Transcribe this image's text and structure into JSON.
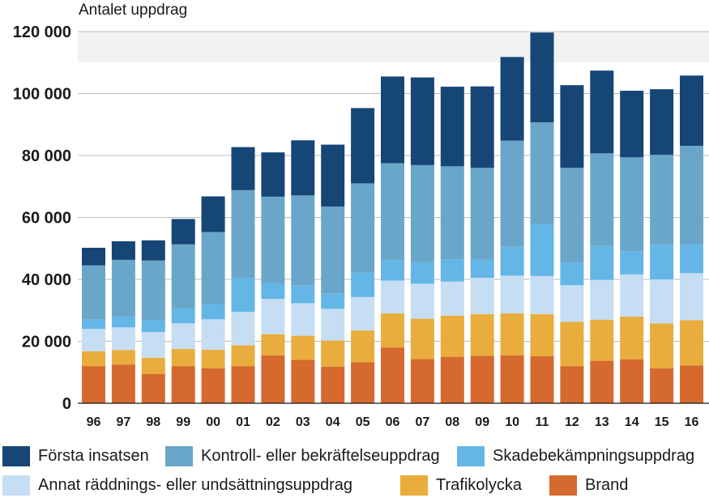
{
  "chart_data": {
    "type": "bar",
    "stacked": true,
    "title": "",
    "ylabel": "Antalet uppdrag",
    "xlabel": "",
    "ylim": [
      0,
      120000
    ],
    "yticks": [
      0,
      20000,
      40000,
      60000,
      80000,
      100000,
      120000
    ],
    "ytick_labels": [
      "0",
      "20 000",
      "40 000",
      "60 000",
      "80 000",
      "100 000",
      "120 000"
    ],
    "grid": true,
    "legend_position": "bottom",
    "categories": [
      "96",
      "97",
      "98",
      "99",
      "00",
      "01",
      "02",
      "03",
      "04",
      "05",
      "06",
      "07",
      "08",
      "09",
      "10",
      "11",
      "12",
      "13",
      "14",
      "15",
      "16"
    ],
    "series": [
      {
        "name": "Brand",
        "color": "#d5692e",
        "values": [
          12000,
          12500,
          9500,
          12000,
          11300,
          12000,
          15500,
          14000,
          11800,
          13200,
          18000,
          14300,
          15000,
          15300,
          15500,
          15200,
          12000,
          13700,
          14200,
          11300,
          12200
        ]
      },
      {
        "name": "Trafikolycka",
        "color": "#e8ad3c",
        "values": [
          4800,
          4700,
          5200,
          5500,
          6000,
          6700,
          6800,
          7800,
          8500,
          10300,
          11000,
          13000,
          13300,
          13500,
          13500,
          13600,
          14300,
          13300,
          13800,
          14500,
          14600
        ]
      },
      {
        "name": "Annat räddnings- eller undsättningsuppdrag",
        "color": "#c6def4",
        "values": [
          7200,
          7300,
          8300,
          8300,
          9800,
          10800,
          11400,
          10500,
          10200,
          10800,
          10600,
          11300,
          11000,
          11700,
          12200,
          12300,
          11800,
          12800,
          13600,
          14200,
          15200
        ]
      },
      {
        "name": "Skadebekämpningsuppdrag",
        "color": "#64b6e6",
        "values": [
          3000,
          3500,
          3800,
          4800,
          4800,
          11000,
          5000,
          5800,
          5000,
          7900,
          6600,
          7000,
          7200,
          5800,
          9300,
          16800,
          7300,
          11000,
          7500,
          11300,
          9200
        ]
      },
      {
        "name": "Kontroll- eller bekräftelseuppdrag",
        "color": "#6aa6c9",
        "values": [
          17500,
          18300,
          19300,
          20700,
          23400,
          28300,
          28000,
          29000,
          28000,
          28800,
          31300,
          31300,
          30000,
          29700,
          34300,
          32800,
          30600,
          29900,
          30300,
          28900,
          31900
        ]
      },
      {
        "name": "Första insatsen",
        "color": "#164676",
        "values": [
          5700,
          6000,
          6500,
          8200,
          11500,
          13900,
          14300,
          17800,
          20000,
          24300,
          28000,
          28300,
          25700,
          26300,
          27000,
          29000,
          26700,
          26700,
          21500,
          21200,
          22700
        ]
      }
    ]
  },
  "legend_order": [
    5,
    4,
    3,
    2,
    1,
    0
  ]
}
